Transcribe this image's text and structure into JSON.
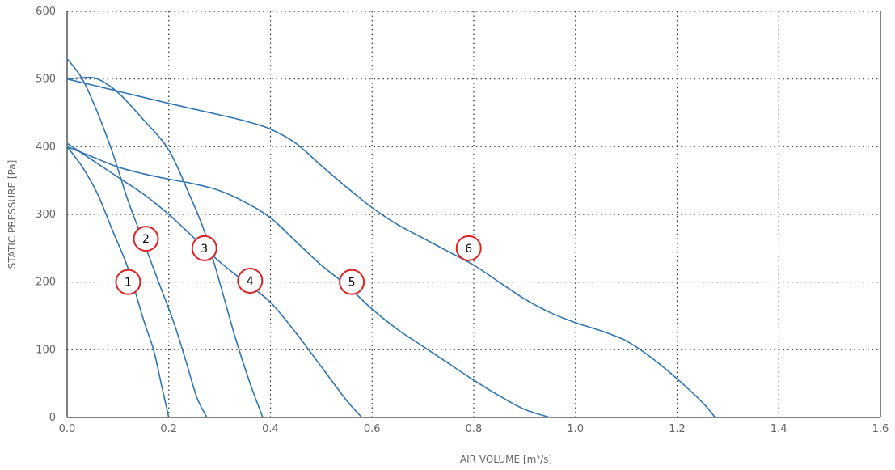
{
  "chart_data": {
    "type": "line",
    "xlabel": "AIR VOLUME [m³/s]",
    "ylabel": "STATIC PRESSURE [Pa]",
    "xlim": [
      0,
      1.6
    ],
    "ylim": [
      0,
      600
    ],
    "x_ticks": [
      "0.0",
      "0.2",
      "0.4",
      "0.6",
      "0.8",
      "1.0",
      "1.2",
      "1.4",
      "1.6"
    ],
    "y_ticks": [
      "0",
      "100",
      "200",
      "300",
      "400",
      "500",
      "600"
    ],
    "grid": true,
    "line_color": "#2e75b6",
    "marker_color": "#e02020",
    "series": [
      {
        "label": "1",
        "label_at": [
          0.12,
          200
        ],
        "points": [
          [
            0,
            400
          ],
          [
            0.03,
            370
          ],
          [
            0.06,
            330
          ],
          [
            0.09,
            275
          ],
          [
            0.12,
            220
          ],
          [
            0.15,
            145
          ],
          [
            0.17,
            100
          ],
          [
            0.185,
            50
          ],
          [
            0.2,
            0
          ]
        ]
      },
      {
        "label": "2",
        "label_at": [
          0.155,
          264
        ],
        "points": [
          [
            0,
            530
          ],
          [
            0.03,
            500
          ],
          [
            0.06,
            450
          ],
          [
            0.09,
            390
          ],
          [
            0.12,
            320
          ],
          [
            0.15,
            260
          ],
          [
            0.18,
            200
          ],
          [
            0.21,
            140
          ],
          [
            0.235,
            80
          ],
          [
            0.255,
            30
          ],
          [
            0.275,
            0
          ]
        ]
      },
      {
        "label": "3",
        "label_at": [
          0.27,
          250
        ],
        "points": [
          [
            0,
            500
          ],
          [
            0.03,
            502
          ],
          [
            0.06,
            500
          ],
          [
            0.1,
            480
          ],
          [
            0.15,
            440
          ],
          [
            0.2,
            395
          ],
          [
            0.24,
            330
          ],
          [
            0.27,
            275
          ],
          [
            0.3,
            200
          ],
          [
            0.33,
            120
          ],
          [
            0.36,
            50
          ],
          [
            0.385,
            0
          ]
        ]
      },
      {
        "label": "4",
        "label_at": [
          0.36,
          202
        ],
        "points": [
          [
            0,
            405
          ],
          [
            0.05,
            380
          ],
          [
            0.1,
            355
          ],
          [
            0.15,
            330
          ],
          [
            0.2,
            300
          ],
          [
            0.25,
            265
          ],
          [
            0.3,
            230
          ],
          [
            0.35,
            200
          ],
          [
            0.4,
            170
          ],
          [
            0.45,
            125
          ],
          [
            0.5,
            75
          ],
          [
            0.55,
            25
          ],
          [
            0.58,
            0
          ]
        ]
      },
      {
        "label": "5",
        "label_at": [
          0.56,
          200
        ],
        "points": [
          [
            0,
            400
          ],
          [
            0.05,
            385
          ],
          [
            0.1,
            370
          ],
          [
            0.15,
            360
          ],
          [
            0.2,
            352
          ],
          [
            0.25,
            345
          ],
          [
            0.3,
            335
          ],
          [
            0.35,
            318
          ],
          [
            0.4,
            295
          ],
          [
            0.45,
            260
          ],
          [
            0.5,
            225
          ],
          [
            0.55,
            195
          ],
          [
            0.6,
            160
          ],
          [
            0.65,
            130
          ],
          [
            0.7,
            105
          ],
          [
            0.75,
            80
          ],
          [
            0.8,
            55
          ],
          [
            0.85,
            32
          ],
          [
            0.9,
            12
          ],
          [
            0.95,
            0
          ]
        ]
      },
      {
        "label": "6",
        "label_at": [
          0.79,
          250
        ],
        "points": [
          [
            0,
            500
          ],
          [
            0.1,
            482
          ],
          [
            0.2,
            464
          ],
          [
            0.3,
            447
          ],
          [
            0.35,
            438
          ],
          [
            0.4,
            426
          ],
          [
            0.45,
            405
          ],
          [
            0.5,
            372
          ],
          [
            0.55,
            340
          ],
          [
            0.6,
            310
          ],
          [
            0.65,
            285
          ],
          [
            0.7,
            265
          ],
          [
            0.75,
            245
          ],
          [
            0.8,
            225
          ],
          [
            0.85,
            200
          ],
          [
            0.9,
            175
          ],
          [
            0.95,
            155
          ],
          [
            1.0,
            140
          ],
          [
            1.05,
            128
          ],
          [
            1.1,
            113
          ],
          [
            1.15,
            88
          ],
          [
            1.2,
            57
          ],
          [
            1.25,
            22
          ],
          [
            1.275,
            0
          ]
        ]
      }
    ]
  }
}
